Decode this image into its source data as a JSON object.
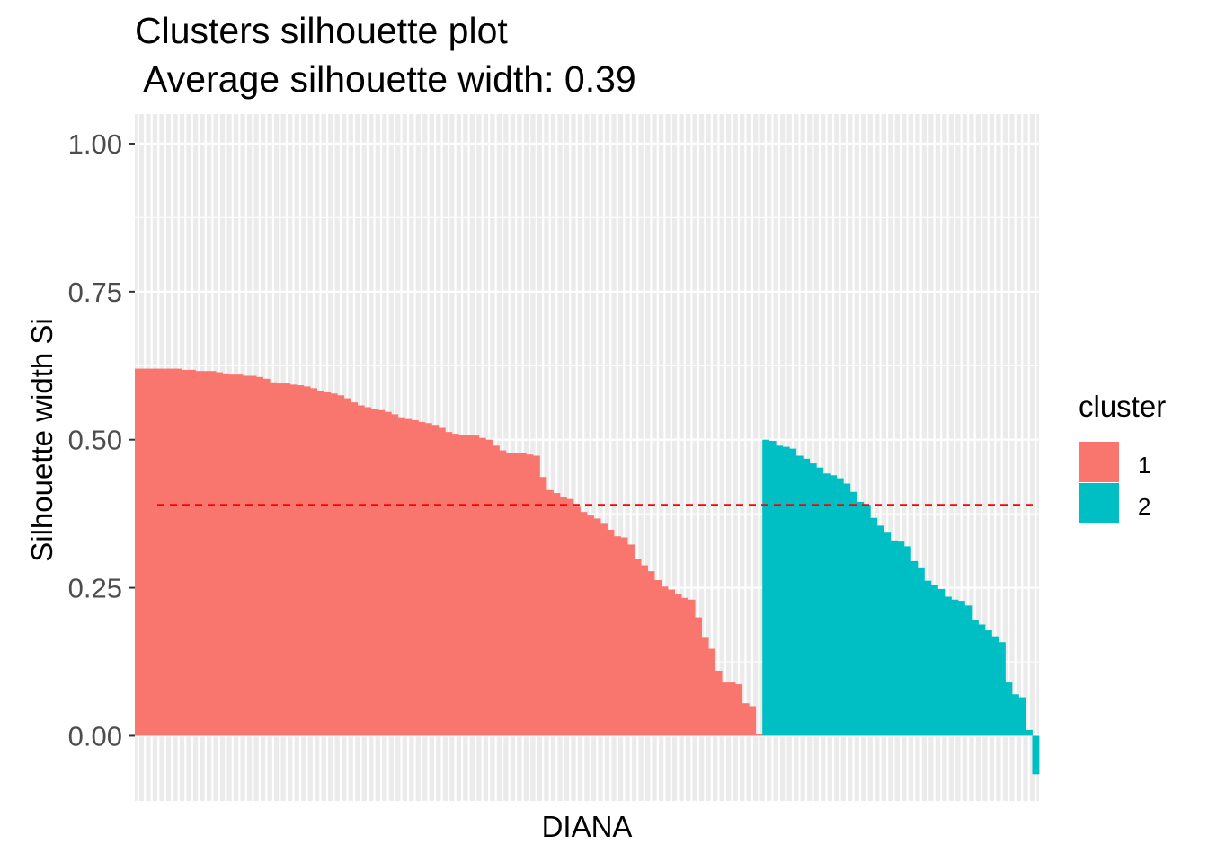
{
  "chart_data": {
    "type": "bar",
    "title": "Clusters silhouette plot",
    "subtitle": " Average silhouette width: 0.39",
    "xlabel": "DIANA",
    "ylabel": "Silhouette width Si",
    "ylim": [
      -0.11,
      1.05
    ],
    "yticks": [
      "0.00",
      "0.25",
      "0.50",
      "0.75",
      "1.00"
    ],
    "average_line": {
      "value": 0.39,
      "color": "#ff0000",
      "style": "dashed"
    },
    "legend": {
      "title": "cluster",
      "position": "right",
      "entries": [
        {
          "label": "1",
          "color": "#F8766D"
        },
        {
          "label": "2",
          "color": "#00BFC4"
        }
      ]
    },
    "grid": true,
    "series": [
      {
        "name": "1",
        "color": "#F8766D",
        "values": [
          0.62,
          0.62,
          0.62,
          0.62,
          0.62,
          0.62,
          0.62,
          0.618,
          0.618,
          0.616,
          0.616,
          0.616,
          0.614,
          0.612,
          0.61,
          0.61,
          0.608,
          0.608,
          0.606,
          0.603,
          0.597,
          0.595,
          0.595,
          0.593,
          0.592,
          0.59,
          0.587,
          0.582,
          0.58,
          0.578,
          0.575,
          0.57,
          0.563,
          0.558,
          0.555,
          0.552,
          0.55,
          0.547,
          0.543,
          0.538,
          0.535,
          0.533,
          0.53,
          0.528,
          0.525,
          0.52,
          0.513,
          0.51,
          0.508,
          0.508,
          0.507,
          0.503,
          0.5,
          0.49,
          0.482,
          0.478,
          0.477,
          0.477,
          0.475,
          0.473,
          0.437,
          0.415,
          0.41,
          0.403,
          0.4,
          0.387,
          0.378,
          0.372,
          0.367,
          0.358,
          0.348,
          0.337,
          0.335,
          0.323,
          0.298,
          0.288,
          0.278,
          0.263,
          0.252,
          0.247,
          0.24,
          0.233,
          0.23,
          0.2,
          0.167,
          0.147,
          0.11,
          0.09,
          0.09,
          0.087,
          0.055,
          0.05,
          0.003
        ]
      },
      {
        "name": "2",
        "color": "#00BFC4",
        "values": [
          0.5,
          0.498,
          0.49,
          0.488,
          0.485,
          0.473,
          0.468,
          0.46,
          0.453,
          0.443,
          0.44,
          0.435,
          0.426,
          0.412,
          0.395,
          0.39,
          0.368,
          0.355,
          0.343,
          0.33,
          0.328,
          0.32,
          0.295,
          0.283,
          0.262,
          0.255,
          0.248,
          0.235,
          0.23,
          0.228,
          0.22,
          0.195,
          0.188,
          0.178,
          0.168,
          0.158,
          0.09,
          0.07,
          0.065,
          0.01,
          -0.065
        ]
      }
    ]
  }
}
